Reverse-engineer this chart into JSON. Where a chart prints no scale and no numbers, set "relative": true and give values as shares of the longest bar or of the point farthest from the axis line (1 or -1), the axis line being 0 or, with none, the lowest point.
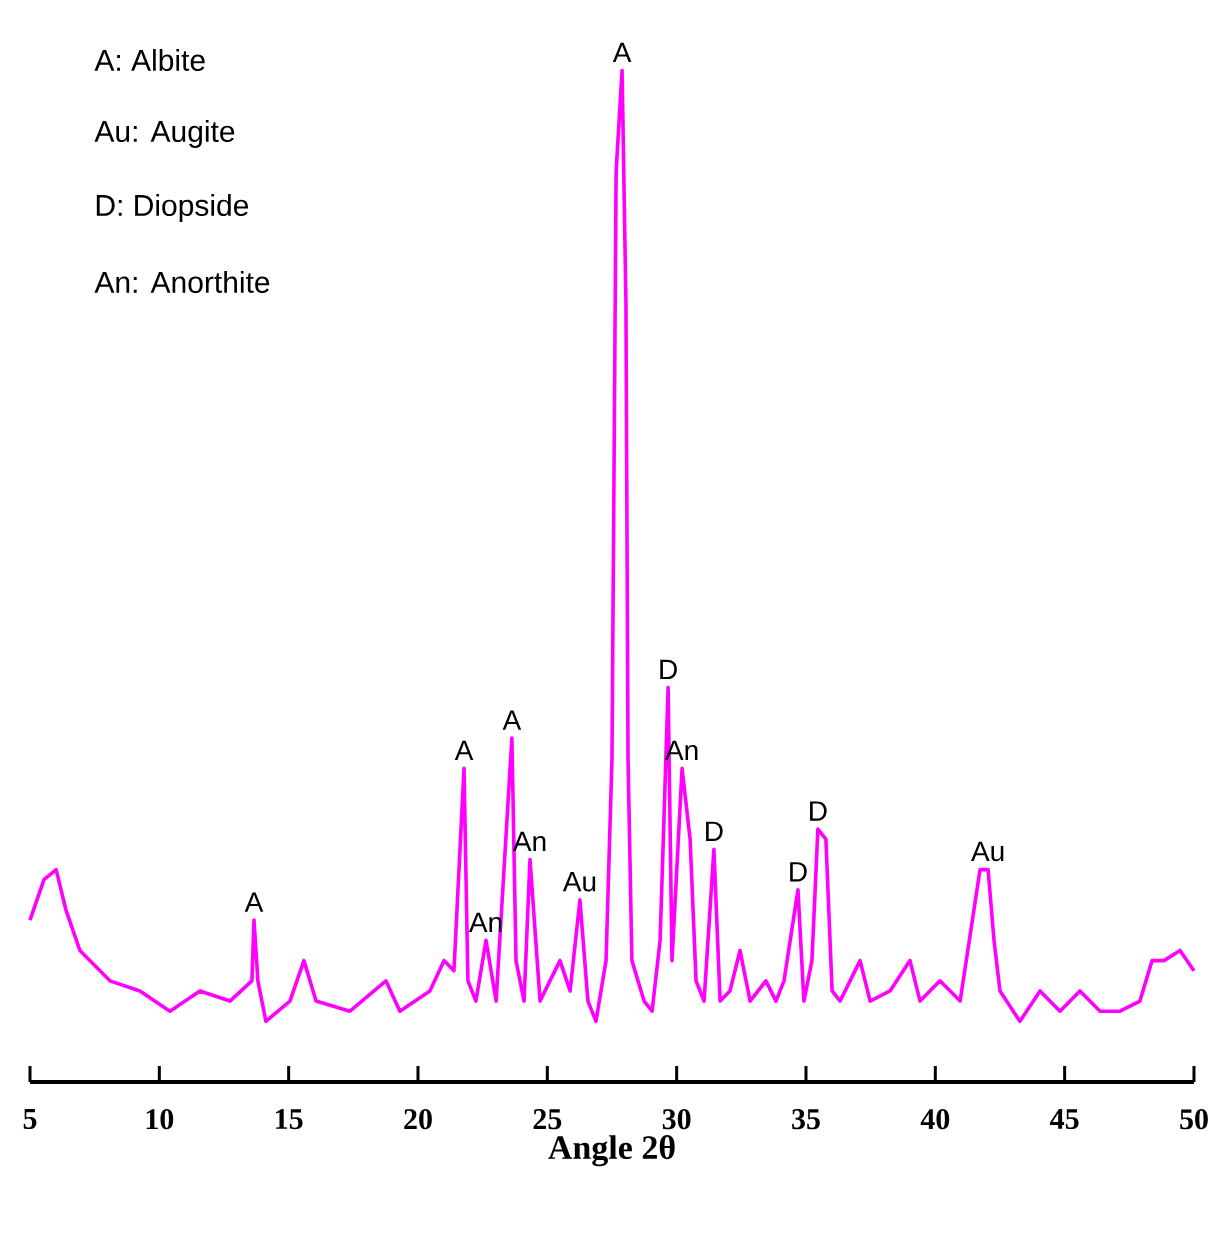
{
  "chart_data": {
    "type": "line",
    "relative": true,
    "xlabel": "Angle 2θ",
    "xlim": [
      5,
      50
    ],
    "xticks": [
      5,
      10,
      15,
      20,
      25,
      30,
      35,
      40,
      45,
      50
    ],
    "x": [
      5.0,
      5.54,
      6.01,
      6.39,
      6.93,
      8.09,
      9.25,
      10.41,
      11.57,
      12.73,
      13.58,
      13.66,
      13.81,
      14.12,
      15.05,
      15.59,
      16.06,
      17.37,
      18.76,
      19.3,
      20.46,
      21.01,
      21.39,
      21.78,
      21.93,
      22.24,
      22.63,
      23.02,
      23.63,
      23.79,
      24.1,
      24.33,
      24.72,
      25.1,
      25.49,
      25.88,
      26.26,
      26.57,
      26.88,
      27.27,
      27.5,
      27.66,
      27.89,
      28.04,
      28.12,
      28.27,
      28.74,
      29.05,
      29.36,
      29.67,
      29.82,
      30.21,
      30.52,
      30.75,
      31.06,
      31.44,
      31.68,
      32.06,
      32.45,
      32.84,
      33.45,
      33.84,
      34.15,
      34.69,
      34.92,
      35.23,
      35.46,
      35.77,
      36.01,
      36.32,
      37.09,
      37.48,
      38.25,
      39.02,
      39.41,
      40.18,
      40.96,
      41.73,
      42.04,
      42.27,
      42.5,
      43.27,
      44.05,
      44.82,
      45.59,
      46.37,
      47.14,
      47.91,
      48.38,
      48.84,
      49.46,
      50.0
    ],
    "series": [
      {
        "color": "#ff00ff",
        "values": [
          0.16,
          0.2,
          0.21,
          0.17,
          0.13,
          0.1,
          0.09,
          0.07,
          0.09,
          0.08,
          0.1,
          0.16,
          0.1,
          0.06,
          0.08,
          0.12,
          0.08,
          0.07,
          0.1,
          0.07,
          0.09,
          0.12,
          0.11,
          0.31,
          0.1,
          0.08,
          0.14,
          0.08,
          0.34,
          0.12,
          0.08,
          0.22,
          0.08,
          0.1,
          0.12,
          0.09,
          0.18,
          0.08,
          0.06,
          0.12,
          0.32,
          0.9,
          1.0,
          0.77,
          0.32,
          0.12,
          0.08,
          0.07,
          0.14,
          0.39,
          0.12,
          0.31,
          0.24,
          0.1,
          0.08,
          0.23,
          0.08,
          0.09,
          0.13,
          0.08,
          0.1,
          0.08,
          0.1,
          0.19,
          0.08,
          0.12,
          0.25,
          0.24,
          0.09,
          0.08,
          0.12,
          0.08,
          0.09,
          0.12,
          0.08,
          0.1,
          0.08,
          0.21,
          0.21,
          0.14,
          0.09,
          0.06,
          0.09,
          0.07,
          0.09,
          0.07,
          0.07,
          0.08,
          0.12,
          0.12,
          0.13,
          0.11
        ]
      }
    ],
    "annotations": [
      "A: Albite",
      "Au: Augite",
      "D: Diopside",
      "An: Anorthite",
      {
        "text": "A",
        "x": 13.66,
        "y": 0.16
      },
      {
        "text": "A",
        "x": 21.78,
        "y": 0.31
      },
      {
        "text": "An",
        "x": 22.63,
        "y": 0.14
      },
      {
        "text": "A",
        "x": 23.63,
        "y": 0.34
      },
      {
        "text": "An",
        "x": 24.33,
        "y": 0.22
      },
      {
        "text": "Au",
        "x": 26.26,
        "y": 0.18
      },
      {
        "text": "A",
        "x": 27.89,
        "y": 1.0
      },
      {
        "text": "D",
        "x": 29.67,
        "y": 0.39
      },
      {
        "text": "An",
        "x": 30.21,
        "y": 0.31
      },
      {
        "text": "D",
        "x": 31.44,
        "y": 0.23
      },
      {
        "text": "D",
        "x": 34.69,
        "y": 0.19
      },
      {
        "text": "D",
        "x": 35.46,
        "y": 0.25
      },
      {
        "text": "Au",
        "x": 42.04,
        "y": 0.21
      }
    ],
    "marker": "none",
    "line_style": "solid"
  }
}
